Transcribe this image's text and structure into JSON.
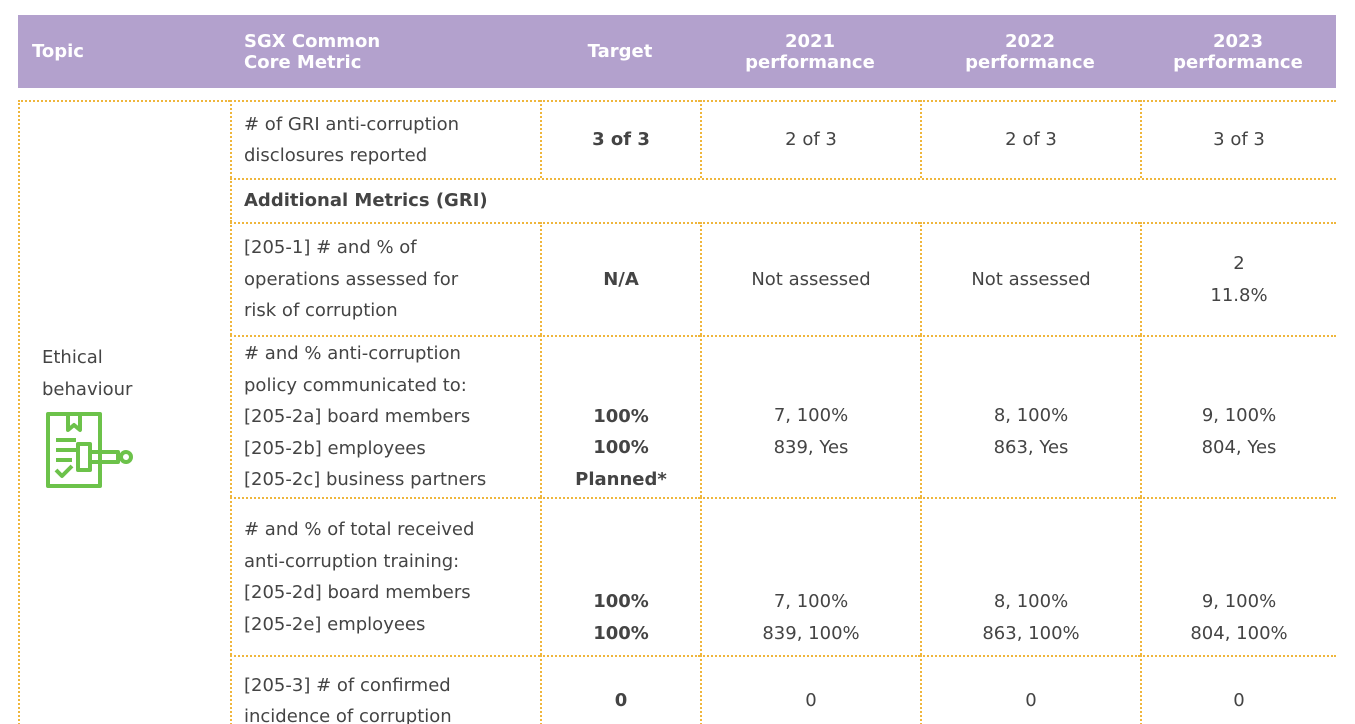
{
  "table": {
    "header": [
      [
        "Topic"
      ],
      [
        "SGX Common",
        "Core Metric"
      ],
      [
        "Target"
      ],
      [
        "2021",
        "performance"
      ],
      [
        "2022",
        "performance"
      ],
      [
        "2023",
        "performance"
      ]
    ],
    "topic": [
      "Ethical",
      "behaviour"
    ],
    "rows": [
      {
        "cells": [
          [
            "# of GRI anti-corruption",
            "disclosures reported"
          ],
          [
            "3 of 3"
          ],
          [
            "2 of 3"
          ],
          [
            "2 of 3"
          ],
          [
            "3 of 3"
          ]
        ]
      },
      {
        "section": "Additional Metrics (GRI)"
      },
      {
        "cells": [
          [
            "[205-1] # and % of",
            "operations assessed for",
            "risk of corruption"
          ],
          [
            "N/A"
          ],
          [
            "Not assessed"
          ],
          [
            "Not assessed"
          ],
          [
            "2",
            "11.8%"
          ]
        ]
      },
      {
        "cells": [
          [
            "# and % anti-corruption",
            "policy communicated to:",
            "[205-2a] board members",
            "[205-2b] employees",
            "[205-2c] business partners"
          ],
          [
            "100%",
            "100%",
            "Planned*"
          ],
          [
            "7, 100%",
            "839, Yes"
          ],
          [
            "8, 100%",
            "863, Yes"
          ],
          [
            "9, 100%",
            "804, Yes"
          ]
        ]
      },
      {
        "cells": [
          [
            "# and % of total received",
            "anti-corruption training:",
            "[205-2d] board members",
            "[205-2e] employees"
          ],
          [
            "100%",
            "100%"
          ],
          [
            "7, 100%",
            "839, 100%"
          ],
          [
            "8, 100%",
            "863, 100%"
          ],
          [
            "9, 100%",
            "804, 100%"
          ]
        ]
      },
      {
        "cells": [
          [
            "[205-3] # of confirmed",
            "incidence of corruption"
          ],
          [
            "0"
          ],
          [
            "0"
          ],
          [
            "0"
          ],
          [
            "0"
          ]
        ]
      }
    ]
  }
}
